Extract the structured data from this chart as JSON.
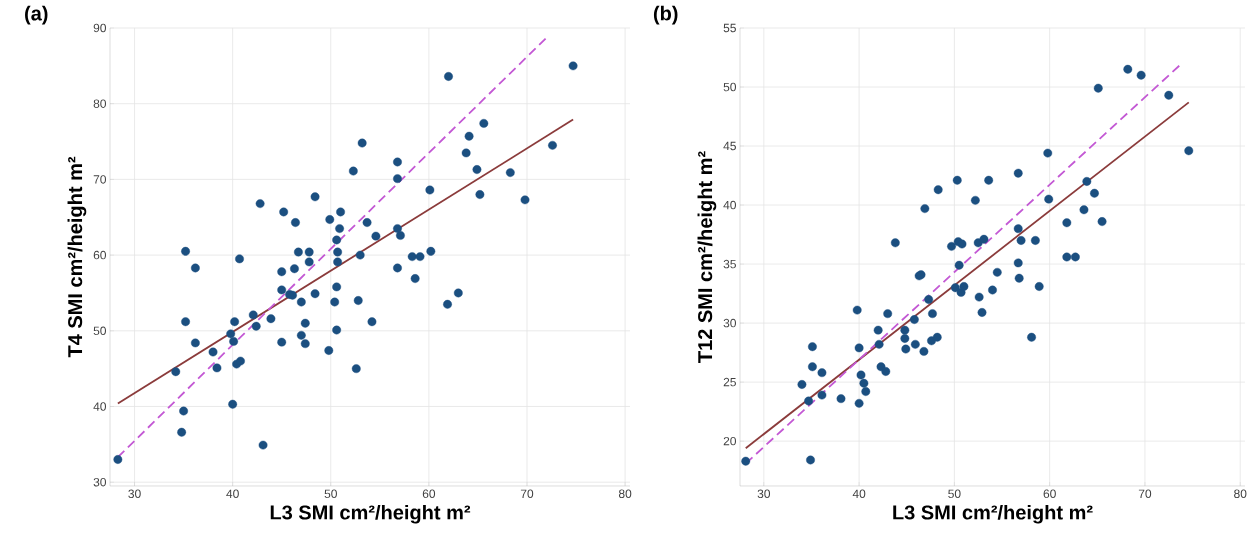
{
  "chart_data": [
    {
      "type": "scatter",
      "title": "(a)",
      "xlabel": "L3 SMI cm²/height m²",
      "ylabel": "T4 SMI cm²/height m²",
      "xlim": [
        27.5,
        80.5
      ],
      "ylim": [
        29.5,
        90
      ],
      "xticks": [
        30,
        40,
        50,
        60,
        70,
        80
      ],
      "yticks": [
        30,
        40,
        50,
        60,
        70,
        80,
        90
      ],
      "grid": true,
      "series": [
        {
          "marker": "circle",
          "color": "#1b4f80",
          "x": [
            28.3,
            34.2,
            35.0,
            34.8,
            35.2,
            35.2,
            36.2,
            36.2,
            38.0,
            38.4,
            39.8,
            40.2,
            40.1,
            40.4,
            40.8,
            40.0,
            40.7,
            42.1,
            42.4,
            42.8,
            43.1,
            43.9,
            45.0,
            45.0,
            45.0,
            45.2,
            45.8,
            46.1,
            46.3,
            46.4,
            46.7,
            47.0,
            47.0,
            47.4,
            47.4,
            47.8,
            47.8,
            48.4,
            48.4,
            49.8,
            49.9,
            50.4,
            50.6,
            50.6,
            50.6,
            50.7,
            50.7,
            50.9,
            51.0,
            52.3,
            52.6,
            52.8,
            53.0,
            53.2,
            53.7,
            54.2,
            54.6,
            56.8,
            56.8,
            60.1,
            56.8,
            57.1,
            56.8,
            58.3,
            59.1,
            60.2,
            58.6,
            61.9,
            63.0,
            62.0,
            63.8,
            64.1,
            65.6,
            64.9,
            65.2,
            68.3,
            69.8,
            72.6,
            74.7
          ],
          "values": [
            33.0,
            44.6,
            39.4,
            36.6,
            60.5,
            51.2,
            58.3,
            48.4,
            47.2,
            45.1,
            49.6,
            51.2,
            48.6,
            45.6,
            46.0,
            40.3,
            59.5,
            52.1,
            50.6,
            66.8,
            34.9,
            51.6,
            48.5,
            55.4,
            57.8,
            65.7,
            54.8,
            54.7,
            58.2,
            64.3,
            60.4,
            53.8,
            49.4,
            51.0,
            48.3,
            60.4,
            59.1,
            67.7,
            54.9,
            47.4,
            64.7,
            53.8,
            50.1,
            55.8,
            62.0,
            60.4,
            59.1,
            63.5,
            65.7,
            71.1,
            45.0,
            54.0,
            60.0,
            74.8,
            64.3,
            51.2,
            62.5,
            72.3,
            70.1,
            68.6,
            63.5,
            62.6,
            58.3,
            59.8,
            59.8,
            60.5,
            56.9,
            53.5,
            55.0,
            83.6,
            73.5,
            75.7,
            77.4,
            71.3,
            68.0,
            70.9,
            67.3,
            74.5,
            85.0
          ]
        },
        {
          "type": "line",
          "color": "#8b3b3b",
          "line_style": "solid",
          "x": [
            28.3,
            74.7
          ],
          "values": [
            40.4,
            77.9
          ]
        },
        {
          "type": "line",
          "color": "#c358d4",
          "line_style": "dashed",
          "x": [
            28.3,
            71.9
          ],
          "values": [
            33.3,
            88.6
          ]
        }
      ]
    },
    {
      "type": "scatter",
      "title": "(b)",
      "xlabel": "L3 SMI cm²/height m²",
      "ylabel": "T12 SMI cm²/height m²",
      "xlim": [
        27.5,
        80.5
      ],
      "ylim": [
        16.2,
        55
      ],
      "xticks": [
        30,
        40,
        50,
        60,
        70,
        80
      ],
      "yticks": [
        20,
        25,
        30,
        35,
        40,
        45,
        50,
        55
      ],
      "grid": true,
      "series": [
        {
          "marker": "circle",
          "color": "#1b4f80",
          "x": [
            28.1,
            34.9,
            34.0,
            34.7,
            35.1,
            35.1,
            36.1,
            36.1,
            38.1,
            39.8,
            40.0,
            40.0,
            40.2,
            40.5,
            40.7,
            42.0,
            42.1,
            42.3,
            42.8,
            43.0,
            43.8,
            44.8,
            44.8,
            44.9,
            45.8,
            45.9,
            46.3,
            46.5,
            46.8,
            46.9,
            47.3,
            47.7,
            47.6,
            48.2,
            48.3,
            49.7,
            50.3,
            50.4,
            50.8,
            50.5,
            50.1,
            50.7,
            51.0,
            52.6,
            52.9,
            52.2,
            52.5,
            53.1,
            53.6,
            54.0,
            54.5,
            56.7,
            56.7,
            57.0,
            56.7,
            56.8,
            58.5,
            58.1,
            58.9,
            59.8,
            59.9,
            61.8,
            61.8,
            62.7,
            63.6,
            63.9,
            64.7,
            65.5,
            65.1,
            68.2,
            69.6,
            72.5,
            74.6
          ],
          "values": [
            18.3,
            18.4,
            24.8,
            23.4,
            28.0,
            26.3,
            25.8,
            23.9,
            23.6,
            31.1,
            27.9,
            23.2,
            25.6,
            24.9,
            24.2,
            29.4,
            28.2,
            26.3,
            25.9,
            30.8,
            36.8,
            29.4,
            28.7,
            27.8,
            30.3,
            28.2,
            34.0,
            34.1,
            27.6,
            39.7,
            32.0,
            30.8,
            28.5,
            28.8,
            41.3,
            36.5,
            42.1,
            36.9,
            36.7,
            34.9,
            33.0,
            32.6,
            33.1,
            32.2,
            30.9,
            40.4,
            36.8,
            37.1,
            42.1,
            32.8,
            34.3,
            42.7,
            38.0,
            37.0,
            35.1,
            33.8,
            37.0,
            28.8,
            33.1,
            44.4,
            40.5,
            38.5,
            35.6,
            35.6,
            39.6,
            42.0,
            41.0,
            38.6,
            49.9,
            51.5,
            51.0,
            49.3,
            44.6
          ]
        },
        {
          "type": "line",
          "color": "#8b3b3b",
          "line_style": "solid",
          "x": [
            28.1,
            74.6
          ],
          "values": [
            19.4,
            48.7
          ]
        },
        {
          "type": "line",
          "color": "#c358d4",
          "line_style": "dashed",
          "x": [
            28.1,
            73.6
          ],
          "values": [
            18.1,
            51.8
          ]
        }
      ]
    }
  ]
}
